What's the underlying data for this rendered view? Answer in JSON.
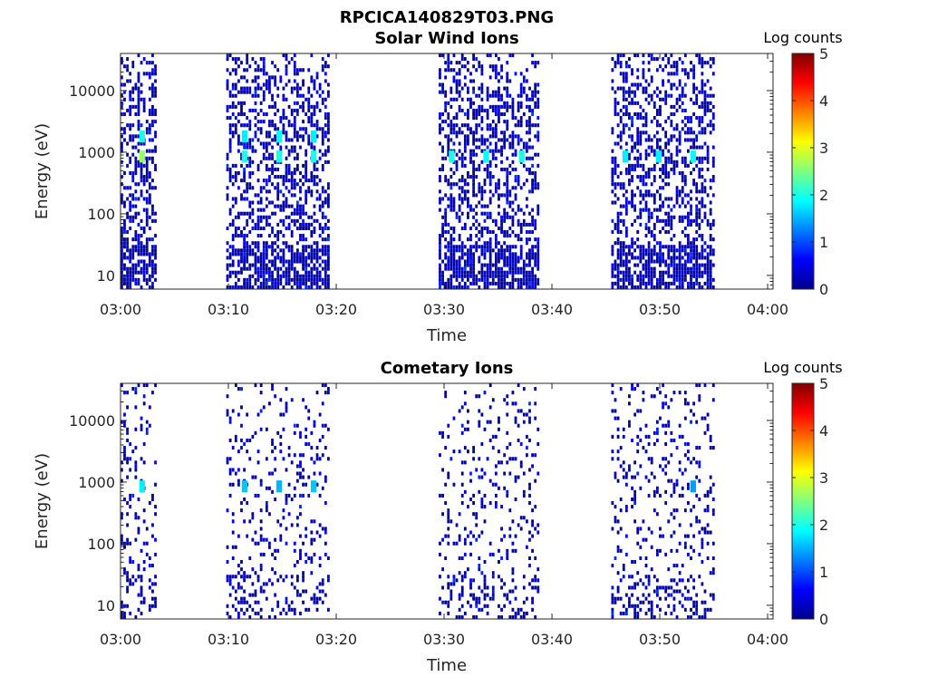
{
  "figure_title": "RPCICA140829T03.PNG",
  "chart_data": [
    {
      "type": "heatmap",
      "title": "Solar Wind Ions",
      "xlabel": "Time",
      "ylabel": "Energy (eV)",
      "x_ticks": [
        "03:00",
        "03:10",
        "03:20",
        "03:30",
        "03:40",
        "03:50",
        "04:00"
      ],
      "x_range_minutes": [
        0,
        60.5
      ],
      "y_ticks": [
        "10",
        "100",
        "1000",
        "10000"
      ],
      "y_tick_values": [
        10,
        100,
        1000,
        10000
      ],
      "ylim": [
        6,
        40000
      ],
      "yscale": "log",
      "colorbar": {
        "label": "Log counts",
        "range": [
          0,
          5
        ],
        "ticks": [
          "0",
          "1",
          "2",
          "3",
          "4",
          "5"
        ],
        "colormap": "jet"
      },
      "active_intervals_minutes": [
        [
          0,
          3.4
        ],
        [
          9.8,
          19.4
        ],
        [
          29.5,
          38.8
        ],
        [
          45.5,
          55.0
        ]
      ],
      "hot_spots": [
        {
          "t": 2.0,
          "e": 850,
          "log_counts": 2.6
        },
        {
          "t": 2.0,
          "e": 1800,
          "log_counts": 2.0
        },
        {
          "t": 11.5,
          "e": 850,
          "log_counts": 2.0
        },
        {
          "t": 11.5,
          "e": 1800,
          "log_counts": 1.8
        },
        {
          "t": 14.7,
          "e": 850,
          "log_counts": 2.0
        },
        {
          "t": 14.7,
          "e": 1800,
          "log_counts": 1.9
        },
        {
          "t": 17.9,
          "e": 850,
          "log_counts": 2.0
        },
        {
          "t": 17.9,
          "e": 1800,
          "log_counts": 1.8
        },
        {
          "t": 30.7,
          "e": 850,
          "log_counts": 2.0
        },
        {
          "t": 33.9,
          "e": 850,
          "log_counts": 1.9
        },
        {
          "t": 37.2,
          "e": 850,
          "log_counts": 2.0
        },
        {
          "t": 46.8,
          "e": 850,
          "log_counts": 1.8
        },
        {
          "t": 49.9,
          "e": 850,
          "log_counts": 1.8
        },
        {
          "t": 53.1,
          "e": 850,
          "log_counts": 1.9
        }
      ],
      "density": 0.42,
      "seed": 17
    },
    {
      "type": "heatmap",
      "title": "Cometary Ions",
      "xlabel": "Time",
      "ylabel": "Energy (eV)",
      "x_ticks": [
        "03:00",
        "03:10",
        "03:20",
        "03:30",
        "03:40",
        "03:50",
        "04:00"
      ],
      "x_range_minutes": [
        0,
        60.5
      ],
      "y_ticks": [
        "10",
        "100",
        "1000",
        "10000"
      ],
      "y_tick_values": [
        10,
        100,
        1000,
        10000
      ],
      "ylim": [
        6,
        40000
      ],
      "yscale": "log",
      "colorbar": {
        "label": "Log counts",
        "range": [
          0,
          5
        ],
        "ticks": [
          "0",
          "1",
          "2",
          "3",
          "4",
          "5"
        ],
        "colormap": "jet"
      },
      "active_intervals_minutes": [
        [
          0,
          3.4
        ],
        [
          9.8,
          19.4
        ],
        [
          29.5,
          38.8
        ],
        [
          45.5,
          55.0
        ]
      ],
      "hot_spots": [
        {
          "t": 2.0,
          "e": 850,
          "log_counts": 1.8
        },
        {
          "t": 11.5,
          "e": 850,
          "log_counts": 1.6
        },
        {
          "t": 14.7,
          "e": 850,
          "log_counts": 1.5
        },
        {
          "t": 17.9,
          "e": 850,
          "log_counts": 1.6
        },
        {
          "t": 53.1,
          "e": 850,
          "log_counts": 1.4
        }
      ],
      "density": 0.16,
      "seed": 91
    }
  ]
}
